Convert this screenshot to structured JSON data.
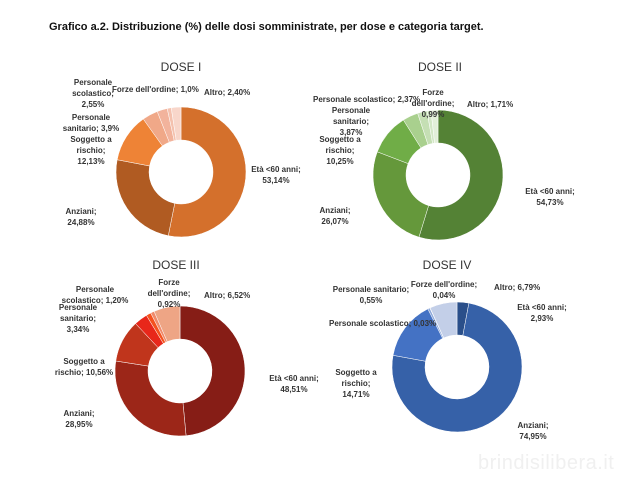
{
  "chart_data": {
    "type": "pie",
    "title": "Grafico a.2. Distribuzione (%) delle dosi somministrate, per dose e categoria target.",
    "charts": [
      {
        "title": "DOSE I",
        "slices": [
          {
            "label": "Età <60 anni; 53,14%",
            "value": 53.14,
            "color": "#d4702c"
          },
          {
            "label": "Anziani; 24,88%",
            "value": 24.88,
            "color": "#b05b22"
          },
          {
            "label": "Soggetto a rischio; 12,13%",
            "value": 12.13,
            "color": "#ee8336"
          },
          {
            "label": "Personale sanitario; 3,9%",
            "value": 3.9,
            "color": "#f0a888"
          },
          {
            "label": "Personale scolastico; 2,55%",
            "value": 2.55,
            "color": "#f2b39c"
          },
          {
            "label": "Forze dell'ordine; 1,0%",
            "value": 1.0,
            "color": "#f4c1ae"
          },
          {
            "label": "Altro; 2,40%",
            "value": 2.4,
            "color": "#f8d6ca"
          }
        ]
      },
      {
        "title": "DOSE II",
        "slices": [
          {
            "label": "Età <60 anni; 54,73%",
            "value": 54.73,
            "color": "#548235"
          },
          {
            "label": "Anziani; 26,07%",
            "value": 26.07,
            "color": "#65983b"
          },
          {
            "label": "Soggetto a rischio; 10,25%",
            "value": 10.25,
            "color": "#70ad47"
          },
          {
            "label": "Personale sanitario; 3,87%",
            "value": 3.87,
            "color": "#a9d08e"
          },
          {
            "label": "Personale scolastico; 2,37%",
            "value": 2.37,
            "color": "#c5dfb4"
          },
          {
            "label": "Forze dell'ordine; 0,99%",
            "value": 0.99,
            "color": "#d3e7c6"
          },
          {
            "label": "Altro; 1,71%",
            "value": 1.71,
            "color": "#e2efd9"
          }
        ]
      },
      {
        "title": "DOSE III",
        "slices": [
          {
            "label": "Età <60 anni; 48,51%",
            "value": 48.51,
            "color": "#861d16"
          },
          {
            "label": "Anziani; 28,95%",
            "value": 28.95,
            "color": "#9c2618"
          },
          {
            "label": "Soggetto a rischio; 10,56%",
            "value": 10.56,
            "color": "#c0351c"
          },
          {
            "label": "Personale sanitario; 3,34%",
            "value": 3.34,
            "color": "#e8271a"
          },
          {
            "label": "Personale scolastico; 1,20%",
            "value": 1.2,
            "color": "#f4521e"
          },
          {
            "label": "Forze dell'ordine; 0,92%",
            "value": 0.92,
            "color": "#f08a6a"
          },
          {
            "label": "Altro; 6,52%",
            "value": 6.52,
            "color": "#eea585"
          }
        ]
      },
      {
        "title": "DOSE IV",
        "slices": [
          {
            "label": "Età <60 anni; 2,93%",
            "value": 2.93,
            "color": "#2a4f8a"
          },
          {
            "label": "Anziani; 74,95%",
            "value": 74.95,
            "color": "#3661a8"
          },
          {
            "label": "Soggetto a rischio; 14,71%",
            "value": 14.71,
            "color": "#4472c4"
          },
          {
            "label": "Personale sanitario; 0,55%",
            "value": 0.55,
            "color": "#8faadc"
          },
          {
            "label": "Personale scolastico; 0,03%",
            "value": 0.03,
            "color": "#a5b9e0"
          },
          {
            "label": "Forze dell'ordine; 0,04%",
            "value": 0.04,
            "color": "#b4c7e7"
          },
          {
            "label": "Altro; 6,79%",
            "value": 6.79,
            "color": "#c3cfe8"
          }
        ]
      }
    ]
  },
  "watermark": "brindisilibera.it"
}
